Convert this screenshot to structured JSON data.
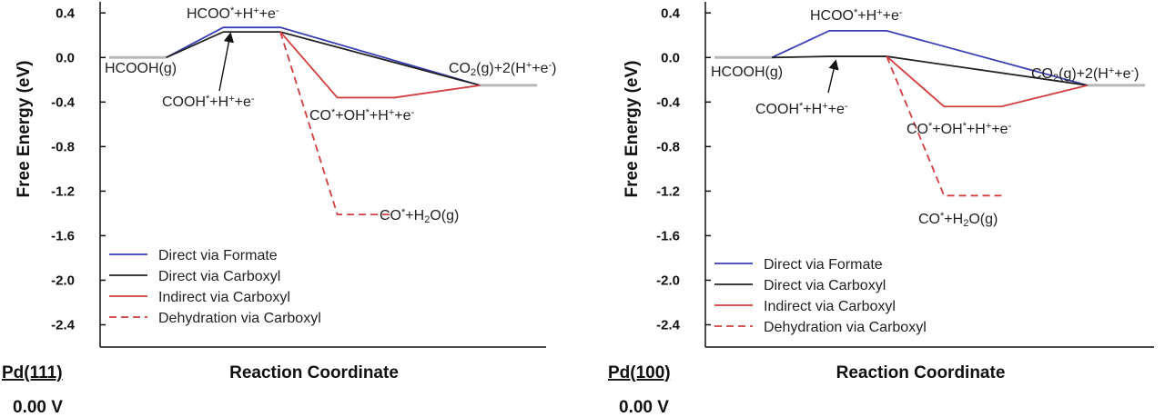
{
  "chart_data": [
    {
      "type": "line",
      "surface": "Pd(111)",
      "potential": "0.00 V",
      "xlabel": "Reaction Coordinate",
      "ylabel": "Free Energy (eV)",
      "ylim": [
        -2.6,
        0.5
      ],
      "yticks": [
        0.4,
        0.0,
        -0.4,
        -0.8,
        -1.2,
        -1.6,
        -2.0,
        -2.4
      ],
      "ytick_labels": [
        "0.4",
        "0.0",
        "-0.4",
        "-0.8",
        "-1.2",
        "-1.6",
        "-2.0",
        "-2.4"
      ],
      "legend_position": "bottom-left",
      "states": [
        {
          "key": "HCOOH",
          "parts": [
            {
              "t": "HCOOH(g)"
            }
          ]
        },
        {
          "key": "HCOO",
          "parts": [
            {
              "t": "HCOO"
            },
            {
              "t": "*",
              "s": "sup"
            },
            {
              "t": "+H"
            },
            {
              "t": "+",
              "s": "sup"
            },
            {
              "t": "+e"
            },
            {
              "t": "-",
              "s": "sup"
            }
          ]
        },
        {
          "key": "COOH",
          "parts": [
            {
              "t": "COOH"
            },
            {
              "t": "*",
              "s": "sup"
            },
            {
              "t": "+H"
            },
            {
              "t": "+",
              "s": "sup"
            },
            {
              "t": "+e"
            },
            {
              "t": "-",
              "s": "sup"
            }
          ]
        },
        {
          "key": "CO_OH",
          "parts": [
            {
              "t": "CO"
            },
            {
              "t": "*",
              "s": "sup"
            },
            {
              "t": "+OH"
            },
            {
              "t": "*",
              "s": "sup"
            },
            {
              "t": "+H"
            },
            {
              "t": "+",
              "s": "sup"
            },
            {
              "t": "+e"
            },
            {
              "t": "-",
              "s": "sup"
            }
          ]
        },
        {
          "key": "CO_H2O",
          "parts": [
            {
              "t": "CO"
            },
            {
              "t": "*",
              "s": "sup"
            },
            {
              "t": "+H"
            },
            {
              "t": "2",
              "s": "sub"
            },
            {
              "t": "O(g)"
            }
          ]
        },
        {
          "key": "CO2",
          "parts": [
            {
              "t": "CO"
            },
            {
              "t": "2",
              "s": "sub"
            },
            {
              "t": "(g)+2(H"
            },
            {
              "t": "+",
              "s": "sup"
            },
            {
              "t": "+e"
            },
            {
              "t": "-",
              "s": "sup"
            },
            {
              "t": ")"
            }
          ]
        }
      ],
      "reference_levels": [
        {
          "label": "HCOOH(g)",
          "x": [
            0.0,
            1.0
          ],
          "y": 0.0
        },
        {
          "label": "CO2(g)+2(H+ +e-)",
          "x": [
            6.5,
            7.5
          ],
          "y": -0.25
        }
      ],
      "series": [
        {
          "name": "Direct via Formate",
          "color": "#3a3fb5",
          "dash": false,
          "x": [
            1.0,
            2.0,
            3.0,
            6.5
          ],
          "y": [
            0.0,
            0.27,
            0.27,
            -0.25
          ]
        },
        {
          "name": "Direct via Carboxyl",
          "color": "#222222",
          "dash": false,
          "x": [
            1.0,
            2.0,
            3.0,
            6.5
          ],
          "y": [
            0.0,
            0.23,
            0.23,
            -0.25
          ]
        },
        {
          "name": "Indirect via Carboxyl",
          "color": "#d03f3f",
          "dash": false,
          "x": [
            3.0,
            4.0,
            5.0,
            6.5
          ],
          "y": [
            0.23,
            -0.36,
            -0.36,
            -0.25
          ]
        },
        {
          "name": "Dehydration via Carboxyl",
          "color": "#d03f3f",
          "dash": true,
          "x": [
            3.0,
            4.0,
            5.0
          ],
          "y": [
            0.23,
            -1.41,
            -1.41
          ]
        }
      ]
    },
    {
      "type": "line",
      "surface": "Pd(100)",
      "potential": "0.00 V",
      "xlabel": "Reaction Coordinate",
      "ylabel": "Free Energy (eV)",
      "ylim": [
        -2.6,
        0.5
      ],
      "yticks": [
        0.4,
        0.0,
        -0.4,
        -0.8,
        -1.2,
        -1.6,
        -2.0,
        -2.4
      ],
      "ytick_labels": [
        "0.4",
        "0.0",
        "-0.4",
        "-0.8",
        "-1.2",
        "-1.6",
        "-2.0",
        "-2.4"
      ],
      "legend_position": "bottom-left",
      "states": [
        {
          "key": "HCOOH",
          "parts": [
            {
              "t": "HCOOH(g)"
            }
          ]
        },
        {
          "key": "HCOO",
          "parts": [
            {
              "t": "HCOO"
            },
            {
              "t": "*",
              "s": "sup"
            },
            {
              "t": "+H"
            },
            {
              "t": "+",
              "s": "sup"
            },
            {
              "t": "+e"
            },
            {
              "t": "-",
              "s": "sup"
            }
          ]
        },
        {
          "key": "COOH",
          "parts": [
            {
              "t": "COOH"
            },
            {
              "t": "*",
              "s": "sup"
            },
            {
              "t": "+H"
            },
            {
              "t": "+",
              "s": "sup"
            },
            {
              "t": "+e"
            },
            {
              "t": "-",
              "s": "sup"
            }
          ]
        },
        {
          "key": "CO_OH",
          "parts": [
            {
              "t": "CO"
            },
            {
              "t": "*",
              "s": "sup"
            },
            {
              "t": "+OH"
            },
            {
              "t": "*",
              "s": "sup"
            },
            {
              "t": "+H"
            },
            {
              "t": "+",
              "s": "sup"
            },
            {
              "t": "+e"
            },
            {
              "t": "-",
              "s": "sup"
            }
          ]
        },
        {
          "key": "CO_H2O",
          "parts": [
            {
              "t": "CO"
            },
            {
              "t": "*",
              "s": "sup"
            },
            {
              "t": "+H"
            },
            {
              "t": "2",
              "s": "sub"
            },
            {
              "t": "O(g)"
            }
          ]
        },
        {
          "key": "CO2",
          "parts": [
            {
              "t": "CO"
            },
            {
              "t": "2",
              "s": "sub"
            },
            {
              "t": "(g)+2(H"
            },
            {
              "t": "+",
              "s": "sup"
            },
            {
              "t": "+e"
            },
            {
              "t": "-",
              "s": "sup"
            },
            {
              "t": ")"
            }
          ]
        }
      ],
      "reference_levels": [
        {
          "label": "HCOOH(g)",
          "x": [
            0.0,
            1.0
          ],
          "y": 0.0
        },
        {
          "label": "CO2(g)+2(H+ +e-)",
          "x": [
            6.5,
            7.5
          ],
          "y": -0.25
        }
      ],
      "series": [
        {
          "name": "Direct via Formate",
          "color": "#3a3fb5",
          "dash": false,
          "x": [
            1.0,
            2.0,
            3.0,
            6.5
          ],
          "y": [
            0.0,
            0.24,
            0.24,
            -0.25
          ]
        },
        {
          "name": "Direct via Carboxyl",
          "color": "#222222",
          "dash": false,
          "x": [
            1.0,
            2.0,
            3.0,
            6.5
          ],
          "y": [
            0.0,
            0.01,
            0.01,
            -0.25
          ]
        },
        {
          "name": "Indirect via Carboxyl",
          "color": "#d03f3f",
          "dash": false,
          "x": [
            3.0,
            4.0,
            5.0,
            6.5
          ],
          "y": [
            0.01,
            -0.44,
            -0.44,
            -0.25
          ]
        },
        {
          "name": "Dehydration via Carboxyl",
          "color": "#d03f3f",
          "dash": true,
          "x": [
            3.0,
            4.0,
            5.0
          ],
          "y": [
            0.01,
            -1.24,
            -1.24
          ]
        }
      ]
    }
  ]
}
